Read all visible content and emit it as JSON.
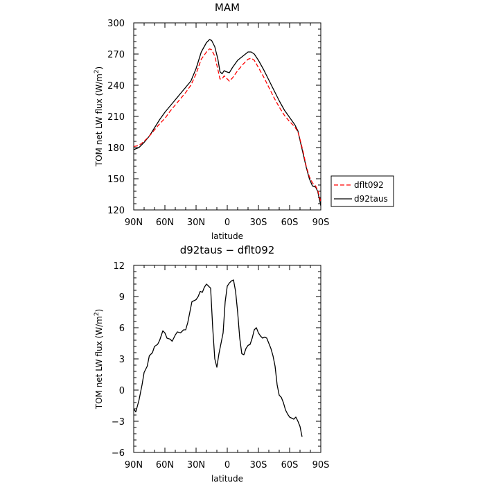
{
  "chart_data": [
    {
      "type": "line",
      "title": "MAM",
      "xlabel": "latitude",
      "ylabel": "TOM net LW flux (W/m²)",
      "ylabel_main": "TOM net LW flux (W/m",
      "ylabel_sup": "2",
      "ylabel_end": ")",
      "xlim": [
        90,
        -90
      ],
      "ylim": [
        120,
        300
      ],
      "x_ticks": [
        90,
        60,
        30,
        0,
        -30,
        -60,
        -90
      ],
      "x_tick_labels": [
        "90N",
        "60N",
        "30N",
        "0",
        "30S",
        "60S",
        "90S"
      ],
      "y_ticks": [
        120,
        150,
        180,
        210,
        240,
        270,
        300
      ],
      "y_tick_labels": [
        "120",
        "150",
        "180",
        "210",
        "240",
        "270",
        "300"
      ],
      "legend_position": "right",
      "series": [
        {
          "name": "dflt092",
          "color": "#ff0000",
          "dash": true,
          "points": [
            [
              90,
              181
            ],
            [
              85,
              182
            ],
            [
              80,
              186
            ],
            [
              75,
              191
            ],
            [
              70,
              197
            ],
            [
              65,
              203
            ],
            [
              60,
              208
            ],
            [
              55,
              215
            ],
            [
              50,
              221
            ],
            [
              45,
              227
            ],
            [
              40,
              233
            ],
            [
              35,
              240
            ],
            [
              30,
              251
            ],
            [
              25,
              265
            ],
            [
              20,
              272
            ],
            [
              17,
              275
            ],
            [
              15,
              274
            ],
            [
              12,
              268
            ],
            [
              9,
              255
            ],
            [
              7,
              246
            ],
            [
              5,
              246
            ],
            [
              3,
              249
            ],
            [
              1,
              247
            ],
            [
              -2,
              244
            ],
            [
              -5,
              247
            ],
            [
              -10,
              254
            ],
            [
              -15,
              260
            ],
            [
              -20,
              265
            ],
            [
              -23,
              266
            ],
            [
              -26,
              264
            ],
            [
              -30,
              257
            ],
            [
              -35,
              248
            ],
            [
              -40,
              238
            ],
            [
              -45,
              228
            ],
            [
              -50,
              219
            ],
            [
              -55,
              211
            ],
            [
              -60,
              205
            ],
            [
              -65,
              200
            ],
            [
              -68,
              195
            ],
            [
              -70,
              188
            ],
            [
              -73,
              176
            ],
            [
              -76,
              162
            ],
            [
              -79,
              152
            ],
            [
              -82,
              146
            ],
            [
              -85,
              143
            ],
            [
              -87,
              139
            ],
            [
              -90,
              128
            ]
          ]
        },
        {
          "name": "d92taus",
          "color": "#000000",
          "dash": false,
          "points": [
            [
              90,
              178
            ],
            [
              85,
              180
            ],
            [
              80,
              185
            ],
            [
              75,
              191
            ],
            [
              70,
              199
            ],
            [
              65,
              207
            ],
            [
              60,
              214
            ],
            [
              55,
              220
            ],
            [
              50,
              226
            ],
            [
              45,
              232
            ],
            [
              40,
              238
            ],
            [
              35,
              244
            ],
            [
              30,
              256
            ],
            [
              25,
              272
            ],
            [
              20,
              281
            ],
            [
              17,
              284
            ],
            [
              15,
              283
            ],
            [
              12,
              277
            ],
            [
              9,
              265
            ],
            [
              7,
              253
            ],
            [
              5,
              251
            ],
            [
              3,
              254
            ],
            [
              1,
              253
            ],
            [
              -2,
              252
            ],
            [
              -5,
              257
            ],
            [
              -10,
              264
            ],
            [
              -15,
              268
            ],
            [
              -20,
              272
            ],
            [
              -23,
              272
            ],
            [
              -26,
              270
            ],
            [
              -30,
              264
            ],
            [
              -35,
              255
            ],
            [
              -40,
              245
            ],
            [
              -45,
              235
            ],
            [
              -50,
              225
            ],
            [
              -55,
              216
            ],
            [
              -60,
              209
            ],
            [
              -65,
              202
            ],
            [
              -68,
              196
            ],
            [
              -70,
              187
            ],
            [
              -73,
              174
            ],
            [
              -76,
              161
            ],
            [
              -79,
              150
            ],
            [
              -82,
              143
            ],
            [
              -85,
              142
            ],
            [
              -87,
              138
            ],
            [
              -90,
              124
            ]
          ]
        }
      ]
    },
    {
      "type": "line",
      "title": "d92taus − dflt092",
      "xlabel": "latitude",
      "ylabel": "TOM net LW flux (W/m²)",
      "ylabel_main": "TOM net LW flux (W/m",
      "ylabel_sup": "2",
      "ylabel_end": ")",
      "xlim": [
        90,
        -90
      ],
      "ylim": [
        -6,
        12
      ],
      "x_ticks": [
        90,
        60,
        30,
        0,
        -30,
        -60,
        -90
      ],
      "x_tick_labels": [
        "90N",
        "60N",
        "30N",
        "0",
        "30S",
        "60S",
        "90S"
      ],
      "y_ticks": [
        -6,
        -3,
        0,
        3,
        6,
        9,
        12
      ],
      "y_tick_labels": [
        "−6",
        "−3",
        "0",
        "3",
        "6",
        "9",
        "12"
      ],
      "series": [
        {
          "name": "",
          "color": "#000000",
          "dash": false,
          "points": [
            [
              90,
              -1.8
            ],
            [
              88,
              -2.1
            ],
            [
              85,
              -1.0
            ],
            [
              82,
              0.5
            ],
            [
              80,
              1.7
            ],
            [
              77,
              2.3
            ],
            [
              75,
              3.3
            ],
            [
              72,
              3.6
            ],
            [
              70,
              4.2
            ],
            [
              67,
              4.4
            ],
            [
              65,
              4.8
            ],
            [
              62,
              5.7
            ],
            [
              60,
              5.5
            ],
            [
              58,
              5.0
            ],
            [
              55,
              4.9
            ],
            [
              53,
              4.7
            ],
            [
              50,
              5.3
            ],
            [
              48,
              5.6
            ],
            [
              45,
              5.5
            ],
            [
              42,
              5.8
            ],
            [
              40,
              5.8
            ],
            [
              38,
              6.5
            ],
            [
              36,
              7.5
            ],
            [
              34,
              8.5
            ],
            [
              32,
              8.6
            ],
            [
              30,
              8.7
            ],
            [
              28,
              9.0
            ],
            [
              26,
              9.5
            ],
            [
              24,
              9.4
            ],
            [
              22,
              9.9
            ],
            [
              20,
              10.2
            ],
            [
              18,
              10.0
            ],
            [
              16,
              9.8
            ],
            [
              14,
              6.0
            ],
            [
              12,
              3.0
            ],
            [
              10,
              2.2
            ],
            [
              8,
              3.5
            ],
            [
              6,
              4.5
            ],
            [
              4,
              5.5
            ],
            [
              2,
              8.5
            ],
            [
              0,
              10.0
            ],
            [
              -2,
              10.3
            ],
            [
              -4,
              10.5
            ],
            [
              -6,
              10.6
            ],
            [
              -8,
              9.5
            ],
            [
              -10,
              7.5
            ],
            [
              -12,
              5.0
            ],
            [
              -14,
              3.5
            ],
            [
              -16,
              3.4
            ],
            [
              -18,
              4.0
            ],
            [
              -20,
              4.3
            ],
            [
              -22,
              4.4
            ],
            [
              -24,
              5.0
            ],
            [
              -26,
              5.8
            ],
            [
              -28,
              6.0
            ],
            [
              -30,
              5.5
            ],
            [
              -32,
              5.2
            ],
            [
              -34,
              5.0
            ],
            [
              -36,
              5.1
            ],
            [
              -38,
              5.0
            ],
            [
              -40,
              4.5
            ],
            [
              -42,
              4.0
            ],
            [
              -44,
              3.3
            ],
            [
              -46,
              2.3
            ],
            [
              -48,
              0.5
            ],
            [
              -50,
              -0.5
            ],
            [
              -52,
              -0.7
            ],
            [
              -54,
              -1.2
            ],
            [
              -56,
              -1.9
            ],
            [
              -58,
              -2.3
            ],
            [
              -60,
              -2.6
            ],
            [
              -62,
              -2.7
            ],
            [
              -64,
              -2.8
            ],
            [
              -66,
              -2.6
            ],
            [
              -68,
              -3.0
            ],
            [
              -70,
              -3.5
            ],
            [
              -72,
              -4.5
            ]
          ]
        }
      ]
    }
  ]
}
